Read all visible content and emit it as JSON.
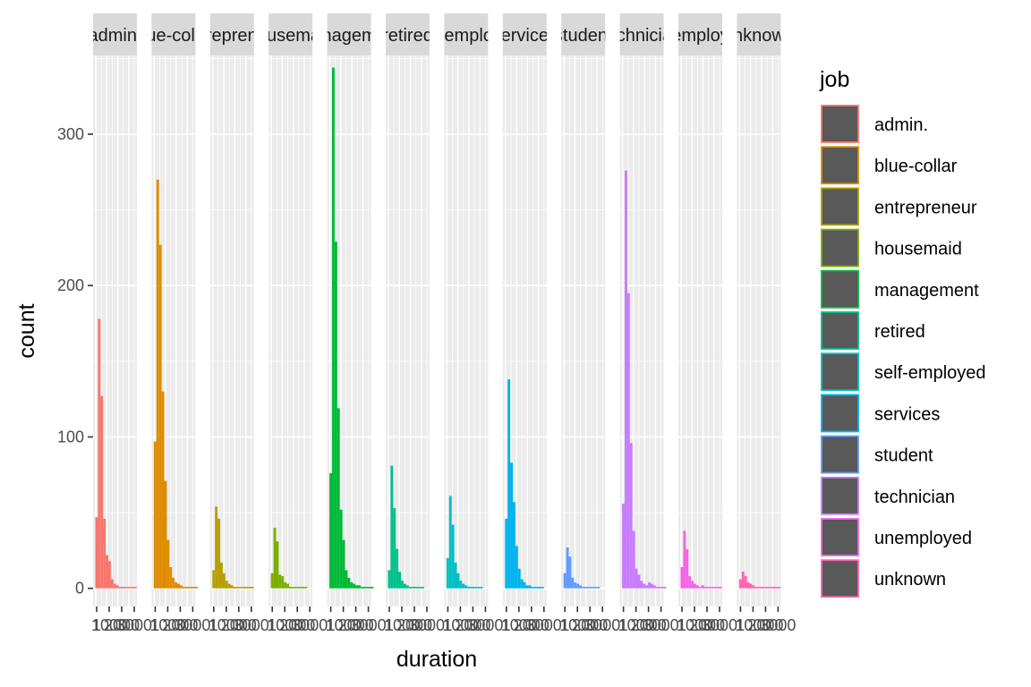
{
  "chart_data": {
    "type": "bar",
    "subtype": "faceted-histogram",
    "title": "",
    "xlabel": "duration",
    "ylabel": "count",
    "ylim": [
      -12,
      352
    ],
    "y_ticks": [
      0,
      100,
      200,
      300
    ],
    "y_tick_labels": [
      "0",
      "100",
      "200",
      "300"
    ],
    "x_tick_labels": [
      "1",
      "1000",
      "2000",
      "3000"
    ],
    "grid": true,
    "legend_position": "right",
    "legend_title": "job",
    "facets": [
      {
        "strip": "admin.",
        "name": "admin.",
        "color": "#F8766D",
        "values": [
          47,
          178,
          127,
          46,
          22,
          18,
          6,
          3,
          2,
          1,
          1,
          1,
          1,
          1,
          1,
          1
        ]
      },
      {
        "strip": "blue-collar",
        "name": "blue-collar",
        "color": "#DE8C00",
        "values": [
          97,
          270,
          227,
          130,
          71,
          32,
          14,
          7,
          4,
          3,
          2,
          1,
          1,
          1,
          1,
          1,
          1
        ]
      },
      {
        "strip": "entrepreneur",
        "name": "entrepreneur",
        "color": "#B79F00",
        "values": [
          12,
          54,
          46,
          17,
          10,
          5,
          3,
          2,
          1,
          1,
          1,
          1,
          1,
          1,
          1,
          1
        ]
      },
      {
        "strip": "housemaid",
        "name": "housemaid",
        "color": "#7CAE00",
        "values": [
          10,
          40,
          31,
          9,
          8,
          4,
          3,
          1,
          1,
          1,
          1,
          1,
          1,
          1
        ]
      },
      {
        "strip": "management",
        "name": "management",
        "color": "#00BA38",
        "values": [
          76,
          344,
          229,
          119,
          52,
          32,
          12,
          7,
          4,
          3,
          2,
          2,
          1,
          1,
          1,
          1,
          1
        ]
      },
      {
        "strip": "retired",
        "name": "retired",
        "color": "#00C08B",
        "values": [
          12,
          81,
          53,
          26,
          11,
          5,
          3,
          2,
          1,
          1,
          1,
          1,
          1,
          1
        ]
      },
      {
        "strip": "self-employed",
        "name": "self-employed",
        "color": "#00BFC4",
        "values": [
          20,
          61,
          42,
          17,
          10,
          5,
          3,
          2,
          1,
          1,
          1,
          1,
          1,
          1
        ]
      },
      {
        "strip": "services",
        "name": "services",
        "color": "#00B4F0",
        "values": [
          46,
          138,
          83,
          57,
          28,
          13,
          6,
          4,
          2,
          2,
          1,
          1,
          1,
          1,
          1
        ]
      },
      {
        "strip": "student",
        "name": "student",
        "color": "#619CFF",
        "values": [
          10,
          27,
          21,
          7,
          4,
          3,
          2,
          1,
          1,
          1,
          1,
          1,
          1,
          1
        ]
      },
      {
        "strip": "technician",
        "name": "technician",
        "color": "#C77CFF",
        "values": [
          56,
          276,
          195,
          96,
          38,
          13,
          9,
          5,
          3,
          2,
          4,
          3,
          2,
          1,
          1,
          1,
          1
        ]
      },
      {
        "strip": "unemployed",
        "name": "unemployed",
        "color": "#F564E3",
        "values": [
          14,
          38,
          26,
          8,
          5,
          3,
          2,
          1,
          2,
          1,
          1,
          1,
          1,
          1,
          1,
          1
        ]
      },
      {
        "strip": "unknown",
        "name": "unknown",
        "color": "#FF64B0",
        "values": [
          6,
          11,
          8,
          4,
          3,
          2,
          1,
          1,
          1,
          1,
          1,
          1,
          1,
          1,
          1,
          1
        ]
      }
    ]
  }
}
